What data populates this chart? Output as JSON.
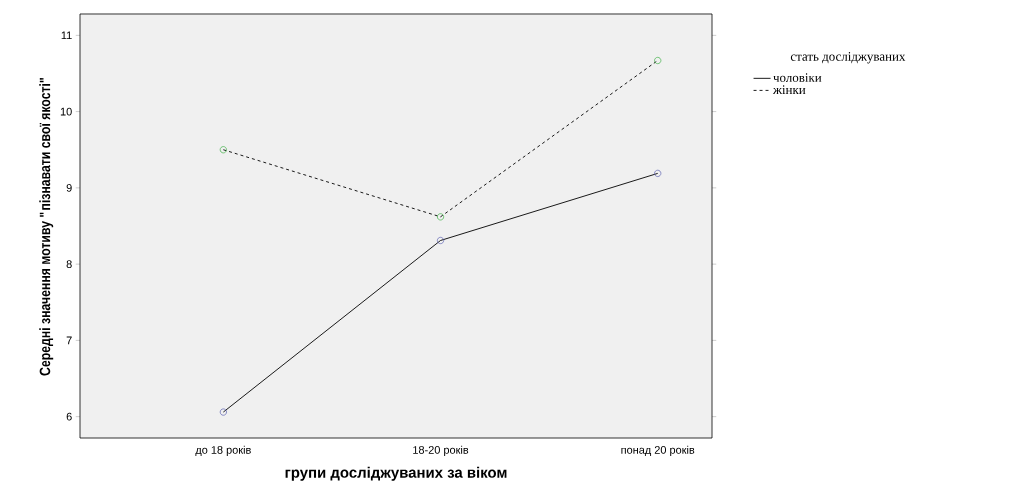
{
  "chart_data": {
    "type": "line",
    "xlabel": "групи досліджуваних за віком",
    "ylabel": "Середні значення мотиву \"пізнавати свої якості\"",
    "legend_title": "стать досліджуваних",
    "categories": [
      "до 18 років",
      "18-20 років",
      "понад 20 років"
    ],
    "series": [
      {
        "name": "чоловіки",
        "color": "#000000",
        "colors": [
          "#5a5fb0",
          "#5a5fb0",
          "#5a5fb0"
        ],
        "line_style": "solid",
        "values": [
          6.06,
          8.31,
          9.19
        ]
      },
      {
        "name": "жінки",
        "color": "#000000",
        "colors": [
          "#3cb043",
          "#3cb043",
          "#3cb043"
        ],
        "line_style": "dashed",
        "values": [
          9.5,
          8.62,
          10.67
        ]
      }
    ],
    "ylim": [
      5.72,
      11.28
    ],
    "yticks": [
      6,
      7,
      8,
      9,
      10,
      11
    ],
    "grid": false,
    "legend": "top right",
    "marker": "circle"
  }
}
